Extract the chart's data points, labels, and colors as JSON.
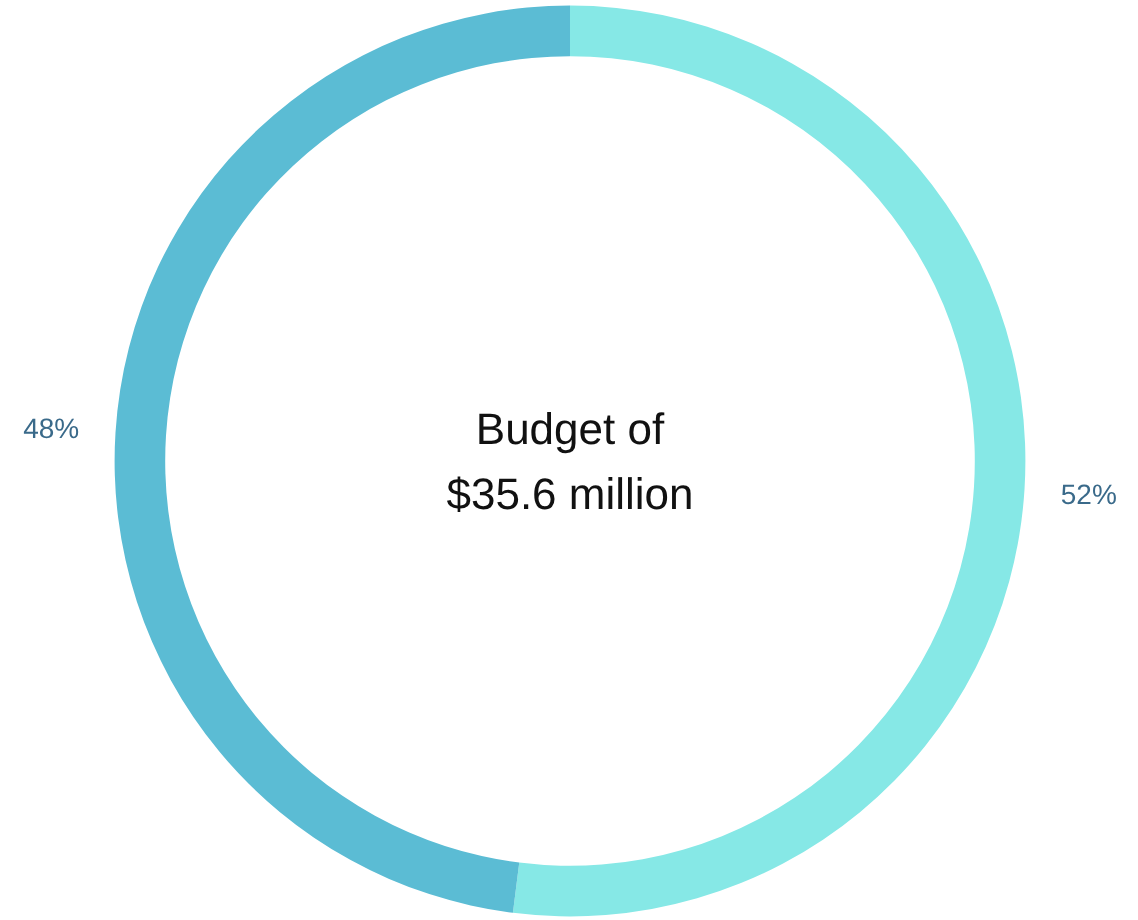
{
  "chart_data": {
    "type": "donut",
    "title": "Budget of\n$35.6 million",
    "categories": [
      null,
      null
    ],
    "values": [
      52,
      48
    ],
    "colors": [
      "#86e8e6",
      "#5bbcd4"
    ],
    "value_labels": [
      "52%",
      "48%"
    ]
  }
}
